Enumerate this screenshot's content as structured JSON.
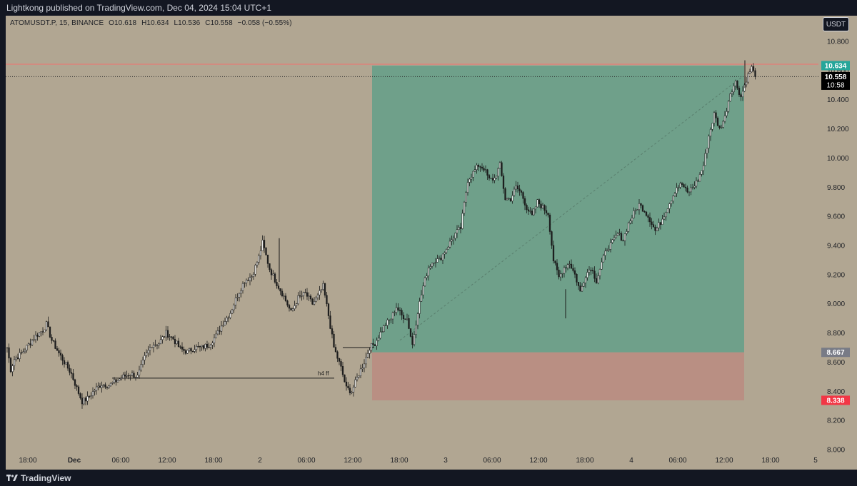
{
  "header": {
    "published": "Lightkong published on TradingView.com, Dec 04, 2024 15:04 UTC+1"
  },
  "legend": {
    "symbol": "ATOMUSDT.P, 15, BINANCE",
    "open": "O10.618",
    "high": "H10.634",
    "low": "L10.536",
    "close": "C10.558",
    "change": "−0.058 (−0.55%)"
  },
  "currency_button": "USDT",
  "footer": {
    "brand": "TradingView"
  },
  "colors": {
    "background": "#b1a692",
    "panel": "#131722",
    "profit_zone": "#6fa08a",
    "stop_zone": "#b98f83",
    "green_label": "#26a69a",
    "red_label": "#f23645",
    "entry_label": "#787b86",
    "hline": "#f2706e"
  },
  "chart_data": {
    "type": "candlestick",
    "timeframe": "15",
    "y_axis": {
      "ticks": [
        "10.800",
        "10.600",
        "10.400",
        "10.200",
        "10.000",
        "9.800",
        "9.600",
        "9.400",
        "9.200",
        "9.000",
        "8.800",
        "8.600",
        "8.400",
        "8.200",
        "8.000"
      ],
      "ylim": [
        8.0,
        10.9
      ]
    },
    "x_axis": {
      "ticks": [
        "18:00",
        "Dec",
        "06:00",
        "12:00",
        "18:00",
        "2",
        "06:00",
        "12:00",
        "18:00",
        "3",
        "06:00",
        "12:00",
        "18:00",
        "4",
        "06:00",
        "12:00",
        "18:00",
        "5"
      ],
      "bold_ticks": [
        "Dec"
      ]
    },
    "price_labels": [
      {
        "value": 10.634,
        "text": "10.634",
        "role": "target"
      },
      {
        "value": 10.558,
        "text": "10.558",
        "sub": "10:58",
        "role": "last"
      },
      {
        "value": 8.667,
        "text": "8.667",
        "role": "entry"
      },
      {
        "value": 8.338,
        "text": "8.338",
        "role": "stop"
      }
    ],
    "position": {
      "type": "long",
      "entry": 8.667,
      "target": 10.634,
      "stop": 8.338
    },
    "annotations": [
      {
        "text": "h4 ff",
        "price": 8.49
      }
    ],
    "close_path_waypoints": [
      [
        0,
        8.7
      ],
      [
        2,
        8.55
      ],
      [
        4,
        8.62
      ],
      [
        8,
        8.66
      ],
      [
        12,
        8.72
      ],
      [
        16,
        8.78
      ],
      [
        20,
        8.82
      ],
      [
        22,
        8.86
      ],
      [
        25,
        8.75
      ],
      [
        29,
        8.66
      ],
      [
        32,
        8.6
      ],
      [
        36,
        8.52
      ],
      [
        39,
        8.42
      ],
      [
        42,
        8.33
      ],
      [
        45,
        8.35
      ],
      [
        49,
        8.41
      ],
      [
        53,
        8.45
      ],
      [
        57,
        8.44
      ],
      [
        61,
        8.47
      ],
      [
        65,
        8.5
      ],
      [
        69,
        8.52
      ],
      [
        73,
        8.5
      ],
      [
        77,
        8.63
      ],
      [
        81,
        8.72
      ],
      [
        85,
        8.73
      ],
      [
        89,
        8.8
      ],
      [
        93,
        8.76
      ],
      [
        97,
        8.69
      ],
      [
        101,
        8.67
      ],
      [
        105,
        8.7
      ],
      [
        109,
        8.7
      ],
      [
        113,
        8.72
      ],
      [
        117,
        8.78
      ],
      [
        121,
        8.87
      ],
      [
        125,
        8.94
      ],
      [
        129,
        9.06
      ],
      [
        133,
        9.16
      ],
      [
        137,
        9.19
      ],
      [
        141,
        9.32
      ],
      [
        143,
        9.42
      ],
      [
        147,
        9.24
      ],
      [
        151,
        9.14
      ],
      [
        155,
        9.05
      ],
      [
        159,
        8.94
      ],
      [
        163,
        9.04
      ],
      [
        167,
        9.07
      ],
      [
        171,
        9.0
      ],
      [
        174,
        9.05
      ],
      [
        177,
        9.12
      ],
      [
        180,
        8.92
      ],
      [
        183,
        8.7
      ],
      [
        187,
        8.56
      ],
      [
        190,
        8.42
      ],
      [
        193,
        8.4
      ],
      [
        197,
        8.52
      ],
      [
        200,
        8.6
      ],
      [
        203,
        8.7
      ],
      [
        206,
        8.73
      ],
      [
        209,
        8.8
      ],
      [
        212,
        8.86
      ],
      [
        215,
        8.9
      ],
      [
        218,
        8.98
      ],
      [
        221,
        8.92
      ],
      [
        224,
        8.9
      ],
      [
        227,
        8.72
      ],
      [
        230,
        8.95
      ],
      [
        233,
        9.12
      ],
      [
        236,
        9.25
      ],
      [
        239,
        9.3
      ],
      [
        242,
        9.3
      ],
      [
        245,
        9.36
      ],
      [
        248,
        9.42
      ],
      [
        251,
        9.48
      ],
      [
        254,
        9.52
      ],
      [
        258,
        9.85
      ],
      [
        261,
        9.9
      ],
      [
        264,
        9.95
      ],
      [
        267,
        9.93
      ],
      [
        270,
        9.85
      ],
      [
        273,
        9.86
      ],
      [
        276,
        9.95
      ],
      [
        279,
        9.72
      ],
      [
        282,
        9.72
      ],
      [
        285,
        9.8
      ],
      [
        288,
        9.76
      ],
      [
        291,
        9.66
      ],
      [
        294,
        9.6
      ],
      [
        297,
        9.7
      ],
      [
        300,
        9.66
      ],
      [
        303,
        9.62
      ],
      [
        306,
        9.3
      ],
      [
        309,
        9.18
      ],
      [
        312,
        9.25
      ],
      [
        315,
        9.28
      ],
      [
        318,
        9.2
      ],
      [
        321,
        9.08
      ],
      [
        324,
        9.2
      ],
      [
        327,
        9.25
      ],
      [
        330,
        9.16
      ],
      [
        333,
        9.28
      ],
      [
        336,
        9.38
      ],
      [
        339,
        9.42
      ],
      [
        342,
        9.48
      ],
      [
        345,
        9.44
      ],
      [
        348,
        9.55
      ],
      [
        351,
        9.62
      ],
      [
        354,
        9.68
      ],
      [
        357,
        9.64
      ],
      [
        360,
        9.58
      ],
      [
        363,
        9.5
      ],
      [
        366,
        9.56
      ],
      [
        369,
        9.64
      ],
      [
        372,
        9.72
      ],
      [
        375,
        9.8
      ],
      [
        378,
        9.82
      ],
      [
        381,
        9.76
      ],
      [
        384,
        9.8
      ],
      [
        387,
        9.85
      ],
      [
        390,
        9.95
      ],
      [
        393,
        10.15
      ],
      [
        396,
        10.3
      ],
      [
        399,
        10.2
      ],
      [
        402,
        10.28
      ],
      [
        405,
        10.45
      ],
      [
        408,
        10.52
      ],
      [
        411,
        10.42
      ],
      [
        414,
        10.54
      ],
      [
        417,
        10.62
      ],
      [
        419,
        10.558
      ]
    ]
  }
}
